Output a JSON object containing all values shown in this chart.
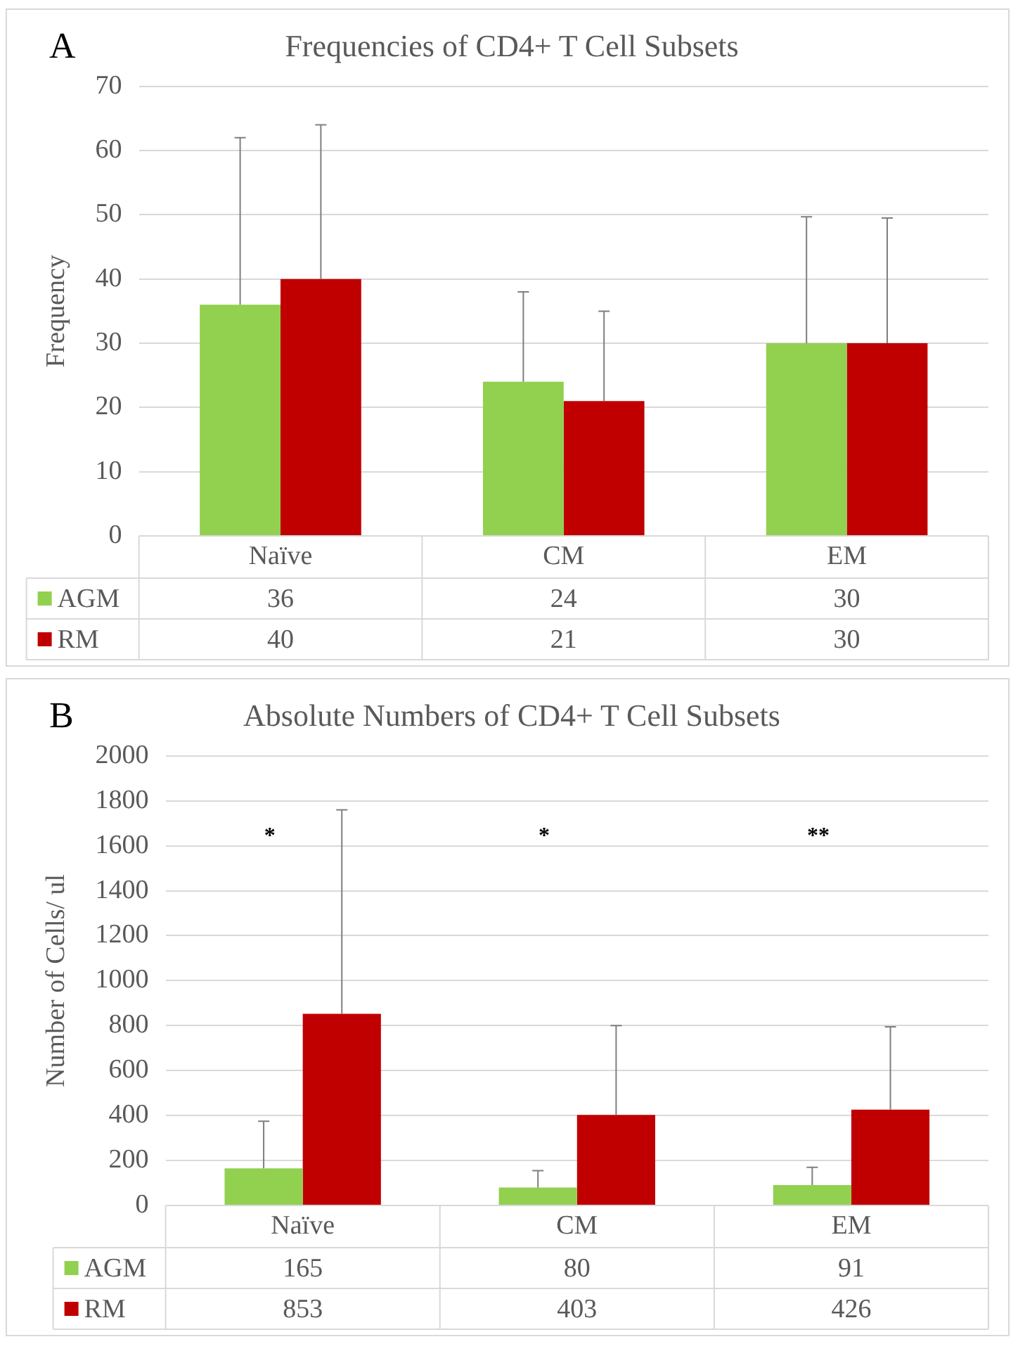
{
  "chart_data": [
    {
      "type": "bar",
      "title": "Frequencies of CD4+ T Cell Subsets",
      "ylabel": "Frequency",
      "annotations": [
        "A"
      ],
      "categories": [
        "Naïve",
        "CM",
        "EM"
      ],
      "series": [
        {
          "name": "AGM",
          "color": "#92d050",
          "values": [
            36,
            24,
            30
          ],
          "errors": [
            [
              36,
              62
            ],
            [
              24,
              38
            ],
            [
              30,
              49.7
            ]
          ]
        },
        {
          "name": "RM",
          "color": "#c00000",
          "values": [
            40,
            21,
            30
          ],
          "errors": [
            [
              40,
              64
            ],
            [
              21,
              35
            ],
            [
              30,
              49.5
            ]
          ]
        }
      ],
      "ylim": [
        0,
        70
      ],
      "yticks": [
        0,
        10,
        20,
        30,
        40,
        50,
        60,
        70
      ],
      "grid": "y",
      "legend": "bottom",
      "data_labels": true
    },
    {
      "type": "bar",
      "title": "Absolute Numbers of CD4+ T Cell Subsets",
      "ylabel": "Number of Cells/ ul",
      "annotations": [
        "B",
        "*",
        "*",
        "**"
      ],
      "categories": [
        "Naïve",
        "CM",
        "EM"
      ],
      "series": [
        {
          "name": "AGM",
          "color": "#92d050",
          "values": [
            165,
            80,
            91
          ],
          "errors": [
            [
              165,
              375
            ],
            [
              80,
              155
            ],
            [
              91,
              170
            ]
          ]
        },
        {
          "name": "RM",
          "color": "#c00000",
          "values": [
            853,
            403,
            426
          ],
          "errors": [
            [
              853,
              1760
            ],
            [
              403,
              800
            ],
            [
              426,
              795
            ]
          ]
        }
      ],
      "ylim": [
        0,
        2000
      ],
      "yticks": [
        0,
        200,
        400,
        600,
        800,
        1000,
        1200,
        1400,
        1600,
        1800,
        2000
      ],
      "grid": "y",
      "legend": "bottom",
      "data_labels": true
    }
  ]
}
